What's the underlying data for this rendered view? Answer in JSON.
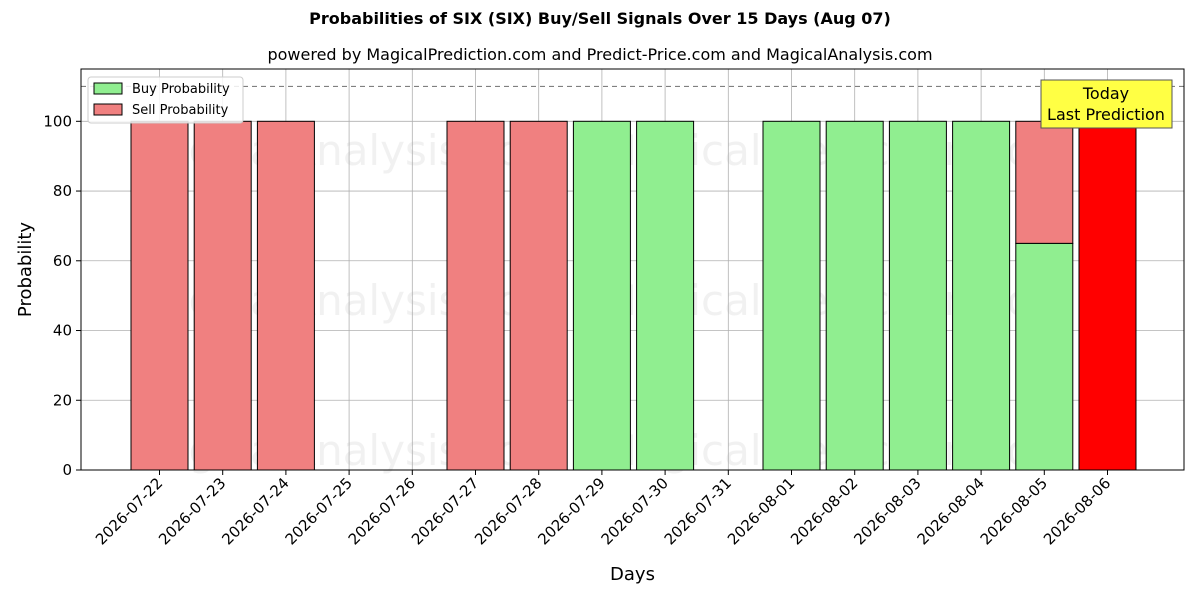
{
  "chart_data": {
    "type": "bar",
    "title": "Probabilities of SIX (SIX) Buy/Sell Signals Over 15 Days (Aug 07)",
    "subtitle": "powered by MagicalPrediction.com and Predict-Price.com and MagicalAnalysis.com",
    "xlabel": "Days",
    "ylabel": "Probability",
    "ylim": [
      0,
      115
    ],
    "yticks": [
      0,
      20,
      40,
      60,
      80,
      100
    ],
    "reference_line": 110,
    "grid": true,
    "legend_position": "top-left",
    "categories": [
      "2026-07-22",
      "2026-07-23",
      "2026-07-24",
      "2026-07-25",
      "2026-07-26",
      "2026-07-27",
      "2026-07-28",
      "2026-07-29",
      "2026-07-30",
      "2026-07-31",
      "2026-08-01",
      "2026-08-02",
      "2026-08-03",
      "2026-08-04",
      "2026-08-05",
      "2026-08-06"
    ],
    "series": [
      {
        "name": "Buy Probability",
        "color": "#90ee90",
        "values": [
          0,
          0,
          0,
          0,
          0,
          0,
          0,
          100,
          100,
          0,
          100,
          100,
          100,
          100,
          65,
          0
        ]
      },
      {
        "name": "Sell Probability",
        "color": "#f08080",
        "values": [
          100,
          100,
          100,
          0,
          0,
          100,
          100,
          0,
          0,
          0,
          0,
          0,
          0,
          0,
          35,
          0
        ]
      }
    ],
    "highlight": {
      "category": "2026-08-06",
      "value": 100,
      "color": "#ff0000"
    },
    "annotation": {
      "lines": [
        "Today",
        "Last Prediction"
      ],
      "background": "#ffff44"
    },
    "watermarks": [
      "MagicalAnalysis.com",
      "MagicalPrediction.com"
    ]
  }
}
